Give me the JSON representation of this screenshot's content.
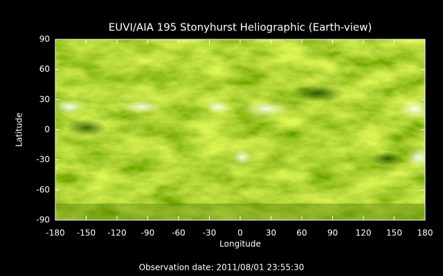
{
  "chart_data": {
    "type": "image",
    "title": "EUVI/AIA 195 Stonyhurst Heliographic (Earth-view)",
    "x_label": "Longitude",
    "y_label": "Latitude",
    "footer": "Observation date: 2011/08/01 23:55:30",
    "xlim": [
      -180,
      180
    ],
    "ylim": [
      -90,
      90
    ],
    "xticks": [
      -180,
      -150,
      -120,
      -90,
      -60,
      -30,
      0,
      30,
      60,
      90,
      120,
      150,
      180
    ],
    "yticks": [
      90,
      60,
      30,
      0,
      -30,
      -60,
      -90
    ]
  }
}
